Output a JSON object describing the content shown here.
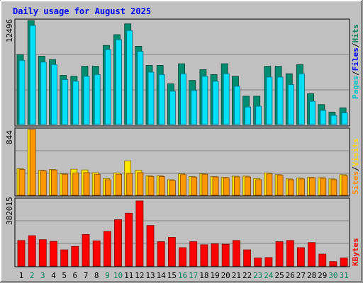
{
  "chart_data": [
    {
      "type": "bar",
      "title": "Daily usage for August 2025",
      "y_axis_max_label": "12496",
      "ylim": [
        0,
        12496
      ],
      "series": [
        {
          "name": "Pages",
          "color": "#00c0c8",
          "values": [
            0,
            0,
            0,
            0,
            0,
            0,
            0,
            0,
            0,
            0,
            0,
            0,
            0,
            0,
            0,
            0,
            0,
            0,
            0,
            0,
            0,
            0,
            0,
            0,
            0,
            0,
            0,
            0,
            0,
            0,
            0
          ]
        },
        {
          "name": "Files",
          "color": "#00e0f8",
          "values": [
            7700,
            11900,
            7500,
            7200,
            5400,
            5200,
            5800,
            6000,
            9000,
            10200,
            11300,
            8800,
            6300,
            6000,
            4000,
            6100,
            4100,
            5800,
            5200,
            6100,
            4600,
            2100,
            2200,
            5700,
            5700,
            4800,
            6100,
            2800,
            1700,
            1100,
            1400
          ]
        },
        {
          "name": "Hits",
          "color": "#008070",
          "values": [
            8400,
            12496,
            8200,
            7800,
            5900,
            5800,
            7000,
            7000,
            9500,
            10800,
            12100,
            9400,
            7100,
            7100,
            4900,
            7300,
            5300,
            6600,
            6000,
            7300,
            5800,
            3400,
            3400,
            7000,
            7000,
            6100,
            7200,
            3700,
            2400,
            1500,
            2000
          ]
        }
      ],
      "legend_labels": {
        "pages": "Pages",
        "files": "Files",
        "hits": "Hits"
      }
    },
    {
      "type": "bar",
      "y_axis_max_label": "844",
      "ylim": [
        0,
        844
      ],
      "series": [
        {
          "name": "Sites",
          "color": "#ff9800",
          "values": [
            330,
            844,
            315,
            325,
            270,
            285,
            290,
            270,
            200,
            270,
            280,
            290,
            240,
            240,
            190,
            265,
            230,
            270,
            235,
            225,
            235,
            235,
            200,
            275,
            255,
            200,
            210,
            225,
            220,
            200,
            250
          ]
        },
        {
          "name": "Visits",
          "color": "#ffff00",
          "values": [
            340,
            844,
            320,
            330,
            275,
            335,
            325,
            290,
            215,
            285,
            440,
            320,
            250,
            250,
            200,
            275,
            240,
            275,
            240,
            230,
            245,
            245,
            215,
            285,
            265,
            210,
            220,
            230,
            225,
            210,
            265
          ]
        }
      ],
      "legend_labels": {
        "sites": "Sites",
        "visits": "Visits"
      }
    },
    {
      "type": "bar",
      "y_axis_max_label": "382015",
      "ylim": [
        0,
        382015
      ],
      "series": [
        {
          "name": "KBytes",
          "color": "#ff0000",
          "values": [
            150000,
            178000,
            155000,
            145000,
            95000,
            115000,
            185000,
            148000,
            203000,
            272000,
            310000,
            382015,
            238000,
            143000,
            168000,
            108000,
            143000,
            125000,
            130000,
            128000,
            150000,
            95000,
            47000,
            50000,
            143000,
            150000,
            108000,
            138000,
            70000,
            26000,
            47000
          ]
        }
      ],
      "legend_labels": {
        "kbytes": "KBytes"
      }
    }
  ],
  "x_labels": [
    "1",
    "2",
    "3",
    "4",
    "5",
    "6",
    "7",
    "8",
    "9",
    "10",
    "11",
    "12",
    "13",
    "14",
    "15",
    "16",
    "17",
    "18",
    "19",
    "20",
    "21",
    "22",
    "23",
    "24",
    "25",
    "26",
    "27",
    "28",
    "29",
    "30",
    "31"
  ],
  "weekend_days": [
    2,
    3,
    9,
    10,
    16,
    17,
    23,
    24,
    30,
    31
  ],
  "colors": {
    "title": "#0000ff",
    "weekday_label": "#000000",
    "weekend_label": "#00805c",
    "background": "#c0c0c0",
    "pages": "#00c0c8",
    "files": "#0000ff",
    "hits": "#00805c",
    "sites": "#ff8c00",
    "visits": "#ffd700",
    "kbytes": "#ff0000",
    "separator": "#000000"
  },
  "legend_separator": "/"
}
